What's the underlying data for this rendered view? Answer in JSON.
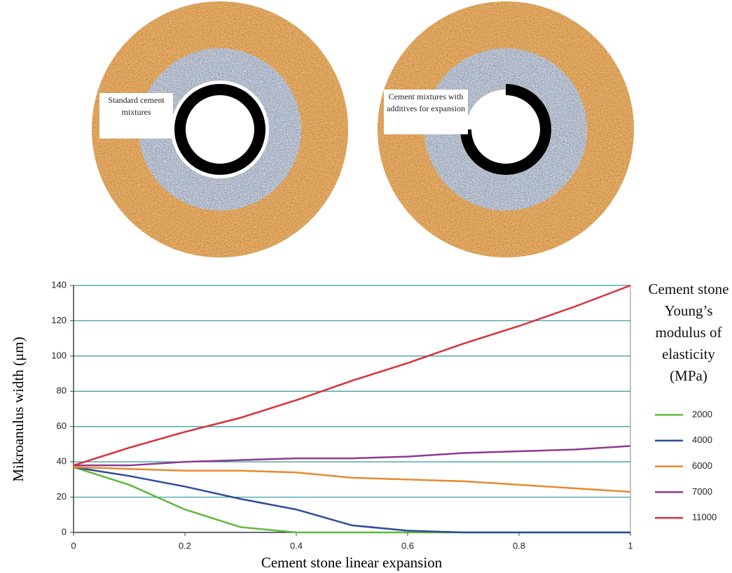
{
  "illustration": {
    "left_label": "Standard cement mixtures",
    "right_label": "Cement mixtures with additives for expansion"
  },
  "chart_data": {
    "type": "line",
    "xlabel": "Cement stone linear expansion",
    "ylabel": "Mikroanulus width (μm)",
    "legend_title": "Cement stone Young’s modulus of elasticity (MPa)",
    "legend": "right",
    "grid": true,
    "x": [
      0,
      0.1,
      0.2,
      0.3,
      0.4,
      0.5,
      0.6,
      0.7,
      0.8,
      0.9,
      1
    ],
    "xlim": [
      0,
      1
    ],
    "xticks": [
      0,
      0.2,
      0.4,
      0.6,
      0.8,
      1
    ],
    "ylim": [
      0,
      140
    ],
    "yticks": [
      0,
      20,
      40,
      60,
      80,
      100,
      120,
      140
    ],
    "series": [
      {
        "name": "2000",
        "color": "#5fb83a",
        "values": [
          37,
          27,
          13,
          3,
          0,
          0,
          0,
          0,
          0,
          0,
          0
        ]
      },
      {
        "name": "4000",
        "color": "#2d4c9e",
        "values": [
          37,
          32,
          26,
          19,
          13,
          4,
          1,
          0,
          0,
          0,
          0
        ]
      },
      {
        "name": "6000",
        "color": "#e8892e",
        "values": [
          37,
          36,
          35,
          35,
          34,
          31,
          30,
          29,
          27,
          25,
          23
        ]
      },
      {
        "name": "7000",
        "color": "#8e3a8e",
        "values": [
          38,
          38,
          40,
          41,
          42,
          42,
          43,
          45,
          46,
          47,
          49
        ]
      },
      {
        "name": "11000",
        "color": "#d9303a",
        "values": [
          38,
          48,
          57,
          65,
          75,
          86,
          96,
          107,
          117,
          128,
          140
        ]
      }
    ]
  }
}
